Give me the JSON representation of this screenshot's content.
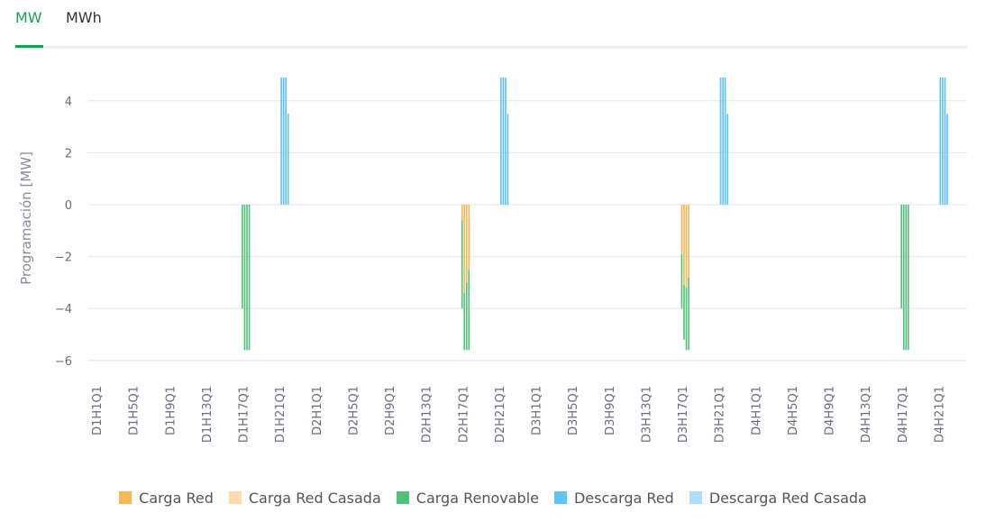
{
  "tabs": [
    {
      "label": "MW",
      "active": true
    },
    {
      "label": "MWh",
      "active": false
    }
  ],
  "chart_data": {
    "type": "bar",
    "ylabel": "Programación [MW]",
    "ylim": [
      -6.5,
      5.2
    ],
    "yticks": [
      4,
      2,
      0,
      -2,
      -4,
      -6
    ],
    "ytick_labels": [
      "4",
      "2",
      "0",
      "−2",
      "−4",
      "−6"
    ],
    "grid": true,
    "legend_position": "bottom",
    "total_periods": 384,
    "xtick_labels": [
      "D1H1Q1",
      "D1H5Q1",
      "D1H9Q1",
      "D1H13Q1",
      "D1H17Q1",
      "D1H21Q1",
      "D2H1Q1",
      "D2H5Q1",
      "D2H9Q1",
      "D2H13Q1",
      "D2H17Q1",
      "D2H21Q1",
      "D3H1Q1",
      "D3H5Q1",
      "D3H9Q1",
      "D3H13Q1",
      "D3H17Q1",
      "D3H21Q1",
      "D4H1Q1",
      "D4H5Q1",
      "D4H9Q1",
      "D4H13Q1",
      "D4H17Q1",
      "D4H21Q1"
    ],
    "series": [
      {
        "name": "Carga Red",
        "color": "#f8b654",
        "points": [
          {
            "x": "D2H17Q4",
            "y": -0.6
          },
          {
            "x": "D2H18Q1",
            "y": -3.4
          },
          {
            "x": "D2H18Q2",
            "y": -3.0
          },
          {
            "x": "D2H18Q3",
            "y": -2.5
          },
          {
            "x": "D3H17Q4",
            "y": -1.9
          },
          {
            "x": "D3H18Q1",
            "y": -3.1
          },
          {
            "x": "D3H18Q2",
            "y": -3.2
          },
          {
            "x": "D3H18Q3",
            "y": -2.8
          }
        ]
      },
      {
        "name": "Carga Red Casada",
        "color": "#fcdcab",
        "points": []
      },
      {
        "name": "Carga Renovable",
        "color": "#52c17a",
        "points": [
          {
            "x": "D1H17Q4",
            "y": -4.0
          },
          {
            "x": "D1H18Q1",
            "y": -5.6
          },
          {
            "x": "D1H18Q2",
            "y": -5.6
          },
          {
            "x": "D1H18Q3",
            "y": -5.6
          },
          {
            "x": "D2H17Q4",
            "y": -3.4
          },
          {
            "x": "D2H18Q1",
            "y": -2.2
          },
          {
            "x": "D2H18Q2",
            "y": -2.6
          },
          {
            "x": "D2H18Q3",
            "y": -3.1
          },
          {
            "x": "D3H17Q4",
            "y": -2.1
          },
          {
            "x": "D3H18Q1",
            "y": -2.1
          },
          {
            "x": "D3H18Q2",
            "y": -2.4
          },
          {
            "x": "D3H18Q3",
            "y": -2.8
          },
          {
            "x": "D4H17Q4",
            "y": -4.0
          },
          {
            "x": "D4H18Q1",
            "y": -5.6
          },
          {
            "x": "D4H18Q2",
            "y": -5.6
          },
          {
            "x": "D4H18Q3",
            "y": -5.6
          }
        ]
      },
      {
        "name": "Descarga Red",
        "color": "#5ec3f7",
        "points": [
          {
            "x": "D1H22Q1",
            "y": 4.9
          },
          {
            "x": "D1H22Q2",
            "y": 4.9
          },
          {
            "x": "D1H22Q3",
            "y": 4.9
          },
          {
            "x": "D1H22Q4",
            "y": 3.5
          },
          {
            "x": "D2H22Q1",
            "y": 4.9
          },
          {
            "x": "D2H22Q2",
            "y": 4.9
          },
          {
            "x": "D2H22Q3",
            "y": 4.9
          },
          {
            "x": "D2H22Q4",
            "y": 3.5
          },
          {
            "x": "D3H22Q1",
            "y": 4.9
          },
          {
            "x": "D3H22Q2",
            "y": 4.9
          },
          {
            "x": "D3H22Q3",
            "y": 4.9
          },
          {
            "x": "D3H22Q4",
            "y": 3.5
          },
          {
            "x": "D4H22Q1",
            "y": 4.9
          },
          {
            "x": "D4H22Q2",
            "y": 4.9
          },
          {
            "x": "D4H22Q3",
            "y": 4.9
          },
          {
            "x": "D4H22Q4",
            "y": 3.5
          }
        ]
      },
      {
        "name": "Descarga Red Casada",
        "color": "#aee0fb",
        "points": []
      }
    ]
  }
}
